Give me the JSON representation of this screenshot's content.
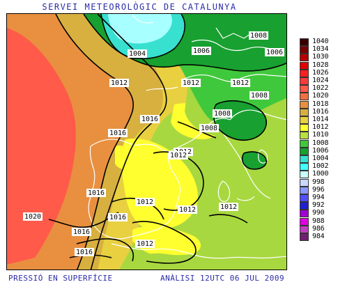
{
  "header": {
    "title": "SERVEI METEOROLÒGIC DE CATALUNYA"
  },
  "footer": {
    "left": "PRESSIÓ EN SUPERFÍCIE",
    "right": "ANÀLISI 12UTC 06 JUL 2009"
  },
  "map": {
    "isobar_labels": [
      "1004",
      "1006",
      "1006",
      "1008",
      "1012",
      "1012",
      "1012",
      "1008",
      "1008",
      "1008",
      "1016",
      "1016",
      "1012",
      "1012",
      "1016",
      "1012",
      "1012",
      "1012",
      "1020",
      "1016",
      "1016",
      "1016",
      "1012"
    ],
    "colors": {
      "sea_high": "#ff5a4a",
      "ocean_1018": "#f08a3c",
      "ocean_1016": "#d8b040",
      "land_1014": "#e8e84a",
      "land_1012": "#d8e050",
      "land_1010": "#a8d840",
      "land_1008": "#6ccc3c",
      "low_1006": "#2fb54a",
      "low_1004": "#4ed8c0",
      "low_1002": "#a8ffff",
      "coast": "#ffffff",
      "isobar": "#000000"
    }
  },
  "legend": {
    "entries": [
      {
        "label": "1040",
        "color": "#3a0000"
      },
      {
        "label": "1034",
        "color": "#7a0000"
      },
      {
        "label": "1030",
        "color": "#b80000"
      },
      {
        "label": "1028",
        "color": "#e00000"
      },
      {
        "label": "1026",
        "color": "#ff2020"
      },
      {
        "label": "1024",
        "color": "#ff3a3a"
      },
      {
        "label": "1022",
        "color": "#ff5a4a"
      },
      {
        "label": "1020",
        "color": "#f07040"
      },
      {
        "label": "1018",
        "color": "#e89040"
      },
      {
        "label": "1016",
        "color": "#d8b040"
      },
      {
        "label": "1014",
        "color": "#e8d040"
      },
      {
        "label": "1012",
        "color": "#ffff30"
      },
      {
        "label": "1010",
        "color": "#b8e040"
      },
      {
        "label": "1008",
        "color": "#40c83c"
      },
      {
        "label": "1006",
        "color": "#18a030"
      },
      {
        "label": "1004",
        "color": "#38e0d0"
      },
      {
        "label": "1002",
        "color": "#40ffff"
      },
      {
        "label": "1000",
        "color": "#c8ffff"
      },
      {
        "label": "998",
        "color": "#c8d8ff"
      },
      {
        "label": "996",
        "color": "#8898ff"
      },
      {
        "label": "994",
        "color": "#5050ff"
      },
      {
        "label": "992",
        "color": "#2020d0"
      },
      {
        "label": "990",
        "color": "#a000d0"
      },
      {
        "label": "988",
        "color": "#e000e0"
      },
      {
        "label": "986",
        "color": "#c040c0"
      },
      {
        "label": "984",
        "color": "#702070"
      }
    ]
  }
}
